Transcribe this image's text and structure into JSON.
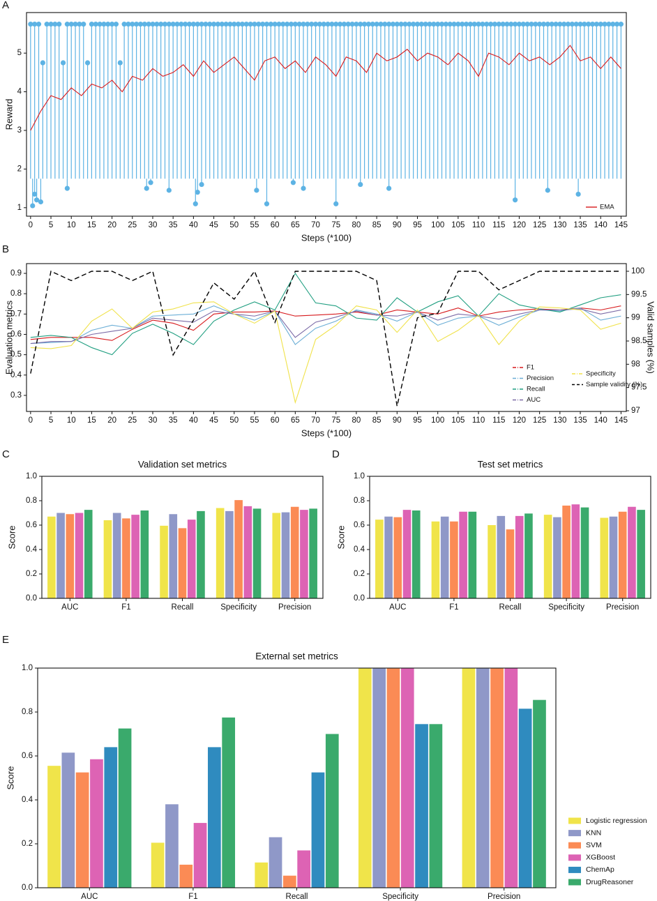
{
  "chart_data": [
    {
      "panel": "A",
      "type": "stem",
      "ylabel": "Reward",
      "xlabel": "Steps (*100)",
      "legend": "lower right",
      "xlim": [
        -1,
        146.3
      ],
      "ylim": [
        0.78,
        6.05
      ],
      "xticks": [
        0,
        5,
        10,
        15,
        20,
        25,
        30,
        35,
        40,
        45,
        50,
        55,
        60,
        65,
        70,
        75,
        80,
        85,
        90,
        95,
        100,
        105,
        110,
        115,
        120,
        125,
        130,
        135,
        140,
        145
      ],
      "yticks": [
        1,
        2,
        3,
        4,
        5
      ],
      "series": [
        {
          "kind": "stem",
          "color": "#5db3e4",
          "baseline": 1.75,
          "x": [
            0,
            1,
            2,
            3,
            4,
            5,
            6,
            7,
            8,
            9,
            10,
            11,
            12,
            13,
            14,
            15,
            16,
            17,
            18,
            19,
            20,
            21,
            22,
            23,
            24,
            25,
            26,
            27,
            28,
            29,
            30,
            31,
            32,
            33,
            34,
            35,
            36,
            37,
            38,
            39,
            40,
            41,
            42,
            43,
            44,
            45,
            46,
            47,
            48,
            49,
            50,
            51,
            52,
            53,
            54,
            55,
            56,
            57,
            58,
            59,
            60,
            61,
            62,
            63,
            64,
            65,
            66,
            67,
            68,
            69,
            70,
            71,
            72,
            73,
            74,
            75,
            76,
            77,
            78,
            79,
            80,
            81,
            82,
            83,
            84,
            85,
            86,
            87,
            88,
            89,
            90,
            91,
            92,
            93,
            94,
            95,
            96,
            97,
            98,
            99,
            100,
            101,
            102,
            103,
            104,
            105,
            106,
            107,
            108,
            109,
            110,
            111,
            112,
            113,
            114,
            115,
            116,
            117,
            118,
            119,
            120,
            121,
            122,
            123,
            124,
            125,
            126,
            127,
            128,
            129,
            130,
            131,
            132,
            133,
            134,
            135,
            136,
            137,
            138,
            139,
            140,
            141,
            142,
            143,
            144,
            145
          ],
          "values": [
            5.75,
            5.75,
            5.75,
            4.75,
            5.75,
            5.75,
            5.75,
            5.75,
            4.75,
            5.75,
            5.75,
            5.75,
            5.75,
            5.75,
            4.75,
            5.75,
            5.75,
            5.75,
            5.75,
            5.75,
            5.75,
            5.75,
            4.75,
            5.75,
            5.75,
            5.75,
            5.75,
            5.75,
            5.75,
            5.75,
            5.75,
            5.75,
            5.75,
            5.75,
            5.75,
            5.75,
            5.75,
            5.75,
            5.75,
            5.75,
            5.75,
            5.75,
            5.75,
            5.75,
            5.75,
            5.75,
            5.75,
            5.75,
            5.75,
            5.75,
            5.75,
            5.75,
            5.75,
            5.75,
            5.75,
            5.75,
            5.75,
            5.75,
            5.75,
            5.75,
            5.75,
            5.75,
            5.75,
            5.75,
            5.75,
            5.75,
            5.75,
            5.75,
            5.75,
            5.75,
            5.75,
            5.75,
            5.75,
            5.75,
            5.75,
            5.75,
            5.75,
            5.75,
            5.75,
            5.75,
            5.75,
            5.75,
            5.75,
            5.75,
            5.75,
            5.75,
            5.75,
            5.75,
            5.75,
            5.75,
            5.75,
            5.75,
            5.75,
            5.75,
            5.75,
            5.75,
            5.75,
            5.75,
            5.75,
            5.75,
            5.75,
            5.75,
            5.75,
            5.75,
            5.75,
            5.75,
            5.75,
            5.75,
            5.75,
            5.75,
            5.75,
            5.75,
            5.75,
            5.75,
            5.75,
            5.75,
            5.75,
            5.75,
            5.75,
            5.75,
            5.75,
            5.75,
            5.75,
            5.75,
            5.75,
            5.75,
            5.75,
            5.75,
            5.75,
            5.75,
            5.75,
            5.75,
            5.75,
            5.75,
            5.75,
            5.75,
            5.75,
            5.75,
            5.75,
            5.75,
            5.75,
            5.75,
            5.75,
            5.75,
            5.75,
            5.75
          ]
        },
        {
          "kind": "stem",
          "color": "#5db3e4",
          "baseline": 1.75,
          "x": [
            0.5,
            1,
            1.5,
            2.5,
            9,
            28.5,
            29.5,
            34,
            40.5,
            41,
            42,
            55.5,
            58,
            64.5,
            67,
            75,
            81,
            88,
            119,
            127,
            134.5
          ],
          "values": [
            1.05,
            1.35,
            1.2,
            1.15,
            1.5,
            1.5,
            1.65,
            1.45,
            1.1,
            1.4,
            1.6,
            1.45,
            1.1,
            1.65,
            1.5,
            1.1,
            1.6,
            1.5,
            1.2,
            1.45,
            1.35
          ]
        },
        {
          "kind": "line",
          "name": "EMA",
          "color": "#d7191c",
          "x": [
            0,
            2.5,
            5,
            7.5,
            10,
            12.5,
            15,
            17.5,
            20,
            22.5,
            25,
            27.5,
            30,
            32.5,
            35,
            37.5,
            40,
            42.5,
            45,
            47.5,
            50,
            52.5,
            55,
            57.5,
            60,
            62.5,
            65,
            67.5,
            70,
            72.5,
            75,
            77.5,
            80,
            82.5,
            85,
            87.5,
            90,
            92.5,
            95,
            97.5,
            100,
            102.5,
            105,
            107.5,
            110,
            112.5,
            115,
            117.5,
            120,
            122.5,
            125,
            127.5,
            130,
            132.5,
            135,
            137.5,
            140,
            142.5,
            145
          ],
          "values": [
            3.0,
            3.5,
            3.9,
            3.8,
            4.1,
            3.9,
            4.2,
            4.1,
            4.3,
            4.0,
            4.4,
            4.3,
            4.6,
            4.4,
            4.5,
            4.7,
            4.4,
            4.8,
            4.5,
            4.7,
            4.9,
            4.6,
            4.3,
            4.8,
            4.9,
            4.6,
            4.8,
            4.5,
            4.9,
            4.7,
            4.4,
            4.9,
            4.8,
            4.5,
            5.0,
            4.8,
            4.9,
            5.1,
            4.8,
            5.0,
            4.9,
            4.7,
            5.0,
            4.8,
            4.4,
            5.0,
            4.9,
            4.7,
            5.0,
            4.8,
            4.9,
            4.7,
            4.9,
            5.2,
            4.8,
            4.9,
            4.6,
            4.9,
            4.6
          ]
        }
      ]
    },
    {
      "panel": "B",
      "type": "line",
      "ylabel": "Evaluation metrics",
      "y2label": "Valid samples (%)",
      "xlabel": "Steps (*100)",
      "legend": "lower right",
      "xlim": [
        -1,
        146.3
      ],
      "ylim": [
        0.221,
        0.948
      ],
      "y2lim": [
        96.985,
        100.165
      ],
      "xticks": [
        0,
        5,
        10,
        15,
        20,
        25,
        30,
        35,
        40,
        45,
        50,
        55,
        60,
        65,
        70,
        75,
        80,
        85,
        90,
        95,
        100,
        105,
        110,
        115,
        120,
        125,
        130,
        135,
        140,
        145
      ],
      "yticks": [
        0.3,
        0.4,
        0.5,
        0.6,
        0.7,
        0.8,
        0.9
      ],
      "y2ticks": [
        97,
        97.5,
        98,
        98.5,
        99,
        99.5,
        100
      ],
      "x": [
        0,
        5,
        10,
        15,
        20,
        25,
        30,
        35,
        40,
        45,
        50,
        55,
        60,
        65,
        70,
        75,
        80,
        85,
        90,
        95,
        100,
        105,
        110,
        115,
        120,
        125,
        130,
        135,
        140,
        145
      ],
      "series": [
        {
          "name": "F1",
          "color": "#d7191c",
          "values": [
            0.575,
            0.585,
            0.585,
            0.585,
            0.57,
            0.625,
            0.67,
            0.655,
            0.62,
            0.7,
            0.71,
            0.71,
            0.715,
            0.69,
            0.695,
            0.7,
            0.71,
            0.695,
            0.72,
            0.71,
            0.7,
            0.73,
            0.69,
            0.71,
            0.72,
            0.725,
            0.72,
            0.73,
            0.72,
            0.74
          ]
        },
        {
          "name": "Precision",
          "color": "#6baed6",
          "values": [
            0.555,
            0.56,
            0.565,
            0.62,
            0.645,
            0.63,
            0.69,
            0.695,
            0.7,
            0.74,
            0.7,
            0.67,
            0.715,
            0.55,
            0.63,
            0.665,
            0.72,
            0.7,
            0.665,
            0.71,
            0.645,
            0.68,
            0.69,
            0.645,
            0.685,
            0.72,
            0.715,
            0.73,
            0.67,
            0.69
          ]
        },
        {
          "name": "Recall",
          "color": "#1f9e80",
          "values": [
            0.585,
            0.595,
            0.585,
            0.535,
            0.5,
            0.605,
            0.65,
            0.605,
            0.55,
            0.665,
            0.72,
            0.76,
            0.72,
            0.9,
            0.755,
            0.74,
            0.68,
            0.67,
            0.78,
            0.71,
            0.76,
            0.79,
            0.69,
            0.8,
            0.745,
            0.725,
            0.71,
            0.745,
            0.78,
            0.795
          ]
        },
        {
          "name": "AUC",
          "color": "#7b6aa6",
          "values": [
            0.555,
            0.565,
            0.565,
            0.6,
            0.615,
            0.63,
            0.68,
            0.67,
            0.66,
            0.715,
            0.7,
            0.69,
            0.715,
            0.585,
            0.66,
            0.685,
            0.715,
            0.695,
            0.69,
            0.71,
            0.67,
            0.7,
            0.69,
            0.675,
            0.7,
            0.72,
            0.72,
            0.725,
            0.7,
            0.72
          ]
        },
        {
          "name": "Specificity",
          "color": "#f0e24a",
          "values": [
            0.535,
            0.53,
            0.545,
            0.665,
            0.725,
            0.63,
            0.71,
            0.725,
            0.755,
            0.76,
            0.7,
            0.655,
            0.715,
            0.265,
            0.575,
            0.645,
            0.74,
            0.72,
            0.61,
            0.72,
            0.565,
            0.62,
            0.695,
            0.55,
            0.665,
            0.735,
            0.73,
            0.72,
            0.625,
            0.655
          ]
        },
        {
          "name": "Sample validity (%)",
          "color": "#000000",
          "axis": "y2",
          "dashed": true,
          "values": [
            97.8,
            100,
            99.8,
            100,
            100,
            99.8,
            100,
            98.2,
            98.95,
            99.75,
            99.4,
            100,
            98.9,
            100,
            100,
            100,
            100,
            99.8,
            97.1,
            99.0,
            99.1,
            100,
            100,
            99.6,
            99.8,
            100,
            100,
            100,
            100,
            100
          ]
        }
      ]
    },
    {
      "panel": "C",
      "type": "bar",
      "title": "Validation set metrics",
      "ylabel": "Score",
      "categories": [
        "AUC",
        "F1",
        "Recall",
        "Specificity",
        "Precision"
      ],
      "ylim": [
        0,
        1
      ],
      "yticks": [
        {
          "value": 0,
          "label": "0.0"
        },
        0.2,
        0.4,
        0.6,
        0.8,
        {
          "value": 1,
          "label": "1.0"
        }
      ],
      "series": [
        {
          "color": "#f0e44a",
          "values": [
            0.67,
            0.64,
            0.595,
            0.74,
            0.7
          ]
        },
        {
          "color": "#8f98c8",
          "values": [
            0.7,
            0.7,
            0.69,
            0.715,
            0.705
          ]
        },
        {
          "color": "#fb8b55",
          "values": [
            0.69,
            0.655,
            0.575,
            0.805,
            0.75
          ]
        },
        {
          "color": "#dd63b4",
          "values": [
            0.7,
            0.685,
            0.645,
            0.755,
            0.725
          ]
        },
        {
          "color": "#3aaa6c",
          "values": [
            0.725,
            0.72,
            0.715,
            0.735,
            0.735
          ]
        }
      ]
    },
    {
      "panel": "D",
      "type": "bar",
      "title": "Test set metrics",
      "ylabel": "Score",
      "categories": [
        "AUC",
        "F1",
        "Recall",
        "Specificity",
        "Precision"
      ],
      "ylim": [
        0,
        1
      ],
      "yticks": [
        {
          "value": 0,
          "label": "0.0"
        },
        0.2,
        0.4,
        0.6,
        0.8,
        {
          "value": 1,
          "label": "1.0"
        }
      ],
      "series": [
        {
          "color": "#f0e44a",
          "values": [
            0.645,
            0.63,
            0.6,
            0.685,
            0.66
          ]
        },
        {
          "color": "#8f98c8",
          "values": [
            0.67,
            0.67,
            0.675,
            0.665,
            0.67
          ]
        },
        {
          "color": "#fb8b55",
          "values": [
            0.665,
            0.63,
            0.565,
            0.76,
            0.71
          ]
        },
        {
          "color": "#dd63b4",
          "values": [
            0.725,
            0.71,
            0.675,
            0.77,
            0.75
          ]
        },
        {
          "color": "#3aaa6c",
          "values": [
            0.72,
            0.71,
            0.695,
            0.745,
            0.725
          ]
        }
      ]
    },
    {
      "panel": "E",
      "type": "bar",
      "title": "External set metrics",
      "ylabel": "Score",
      "legend": "outside right",
      "categories": [
        "AUC",
        "F1",
        "Recall",
        "Specificity",
        "Precision"
      ],
      "ylim": [
        0,
        1
      ],
      "yticks": [
        {
          "value": 0,
          "label": "0.0"
        },
        0.2,
        0.4,
        0.6,
        0.8,
        {
          "value": 1,
          "label": "1.0"
        }
      ],
      "series": [
        {
          "name": "Logistic regression",
          "color": "#f0e44a",
          "values": [
            0.555,
            0.205,
            0.115,
            1,
            1
          ]
        },
        {
          "name": "KNN",
          "color": "#8f98c8",
          "values": [
            0.615,
            0.38,
            0.23,
            1,
            1
          ]
        },
        {
          "name": "SVM",
          "color": "#fb8b55",
          "values": [
            0.525,
            0.105,
            0.055,
            1,
            1
          ]
        },
        {
          "name": "XGBoost",
          "color": "#dd63b4",
          "values": [
            0.585,
            0.295,
            0.17,
            1,
            1
          ]
        },
        {
          "name": "ChemAp",
          "color": "#2f8bbf",
          "values": [
            0.64,
            0.64,
            0.525,
            0.745,
            0.815
          ]
        },
        {
          "name": "DrugReasoner",
          "color": "#3aaa6c",
          "values": [
            0.725,
            0.775,
            0.7,
            0.745,
            0.855
          ]
        }
      ]
    }
  ]
}
